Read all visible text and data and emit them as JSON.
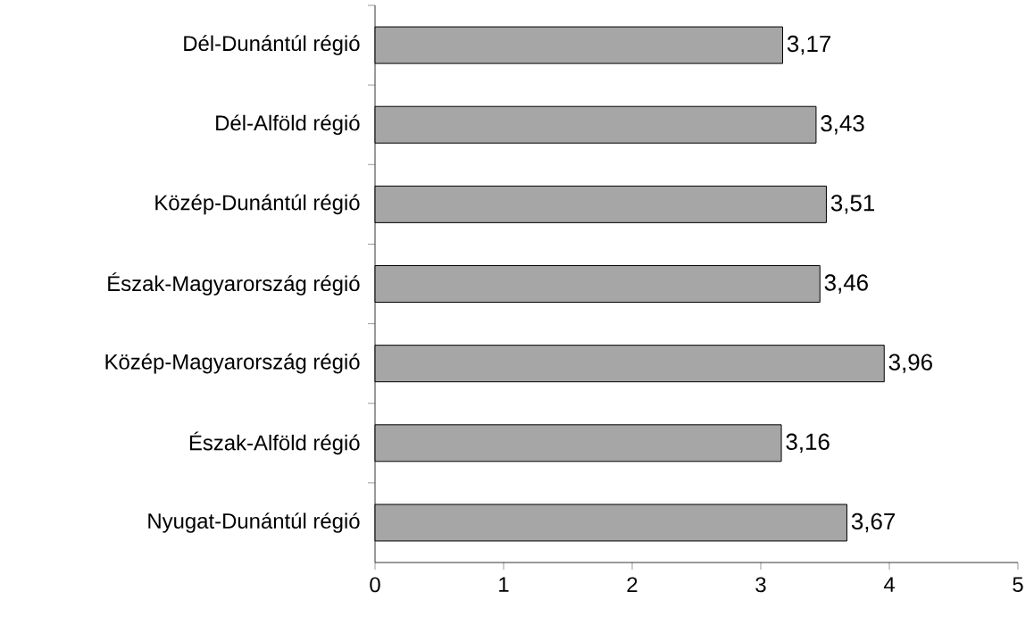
{
  "chart_data": {
    "type": "bar",
    "orientation": "horizontal",
    "categories": [
      "Dél-Dunántúl régió",
      "Dél-Alföld régió",
      "Közép-Dunántúl régió",
      "Észak-Magyarország régió",
      "Közép-Magyarország régió",
      "Észak-Alföld régió",
      "Nyugat-Dunántúl régió"
    ],
    "values": [
      3.17,
      3.43,
      3.51,
      3.46,
      3.96,
      3.16,
      3.67
    ],
    "value_labels": [
      "3,17",
      "3,43",
      "3,51",
      "3,46",
      "3,96",
      "3,16",
      "3,67"
    ],
    "color": "#a6a6a6",
    "xlim": [
      0,
      5
    ],
    "xticks": [
      0,
      1,
      2,
      3,
      4,
      5
    ]
  }
}
